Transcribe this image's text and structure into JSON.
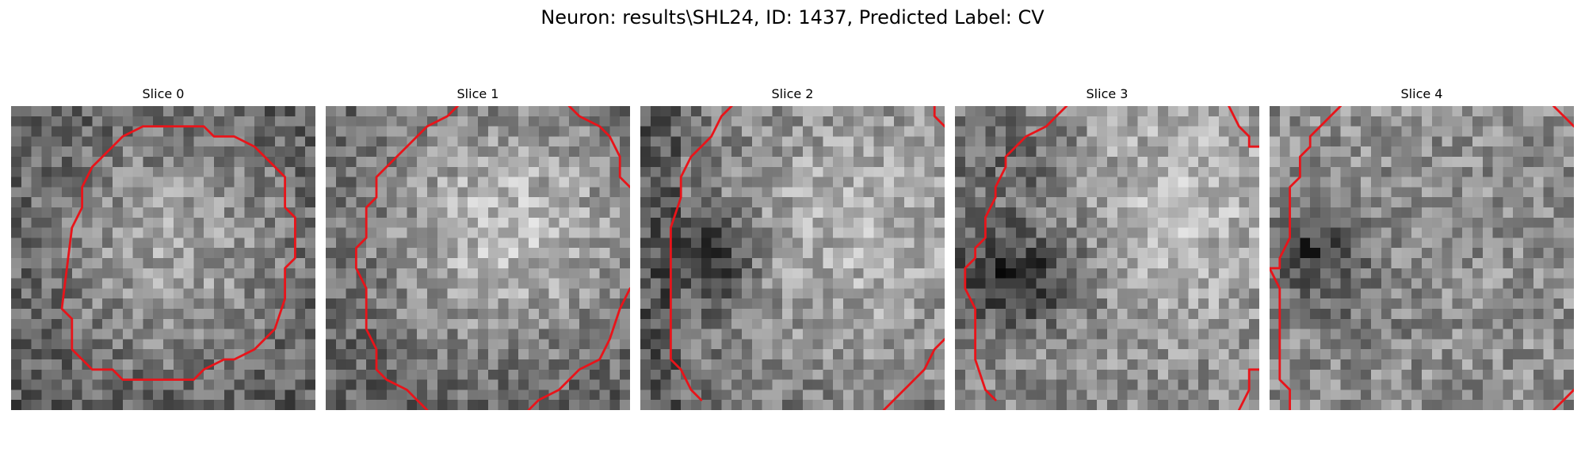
{
  "figure": {
    "title": "Neuron: results\\SHL24, ID: 1437, Predicted Label: CV"
  },
  "colors": {
    "contour": "#e8141a",
    "colormap": "gray"
  },
  "grid_size": 30,
  "slices": [
    {
      "label": "Slice 0"
    },
    {
      "label": "Slice 1"
    },
    {
      "label": "Slice 2"
    },
    {
      "label": "Slice 3"
    },
    {
      "label": "Slice 4"
    }
  ]
}
